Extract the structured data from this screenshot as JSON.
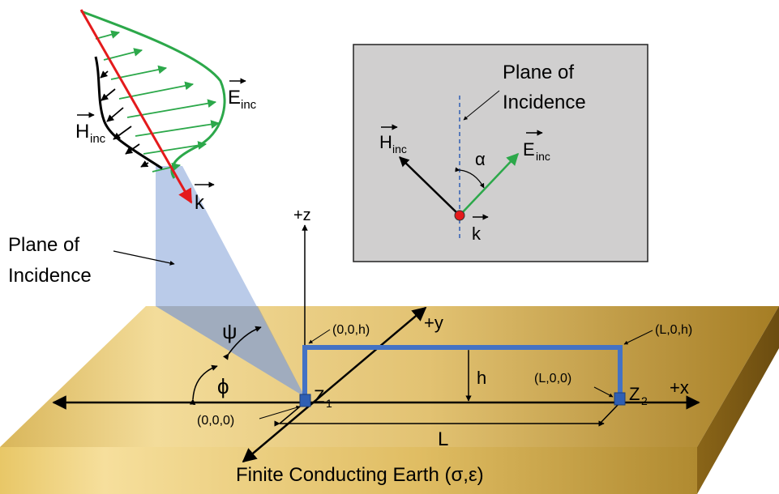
{
  "labels": {
    "e_inc": "E",
    "e_inc_sub": "inc",
    "h_inc": "H",
    "h_inc_sub": "inc",
    "k": "k",
    "plane_of_incidence_line1": "Plane of",
    "plane_of_incidence_line2": "Incidence",
    "psi": "ψ",
    "phi": "ϕ",
    "alpha": "α",
    "axis_z": "+z",
    "axis_y": "+y",
    "axis_x": "+x",
    "h": "h",
    "L": "L",
    "z1": "Z",
    "z1_sub": "1",
    "z2": "Z",
    "z2_sub": "2",
    "origin": "(0,0,0)",
    "point_00h": "(0,0,h)",
    "point_L0h": "(L,0,h)",
    "point_L00": "(L,0,0)",
    "earth": "Finite Conducting Earth (σ,ε)"
  },
  "colors": {
    "e_field": "#2ca84a",
    "h_field": "#000000",
    "k_vector": "#e41a1c",
    "line_conductor": "#4472c4",
    "plane_fill": "#b4c7e7",
    "earth": "#c9a23a",
    "inset_bg": "#d0cfcf"
  }
}
